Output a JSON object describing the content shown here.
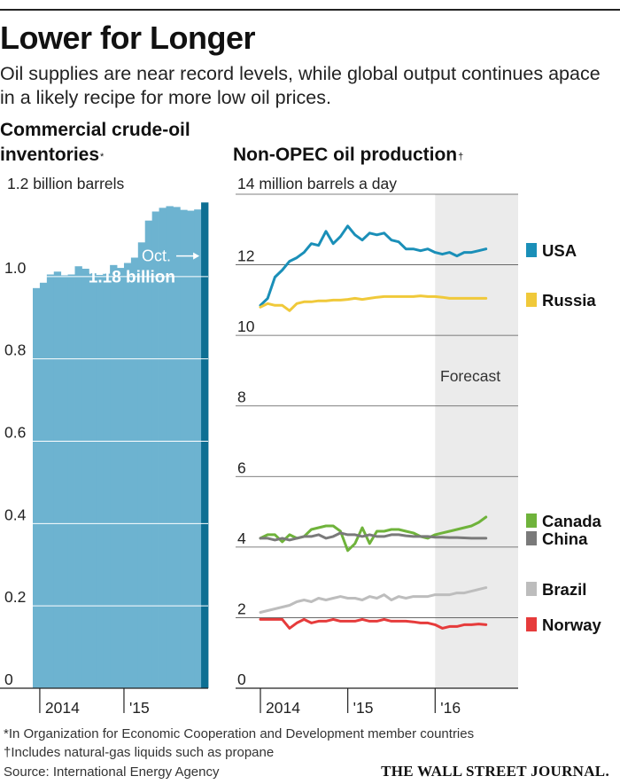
{
  "header": {
    "title": "Lower for Longer",
    "subtitle": "Oil supplies are near record levels, while global output continues apace in a likely recipe for more low oil prices."
  },
  "chart_data": [
    {
      "type": "bar",
      "title": "Commercial crude-oil inventories",
      "title_mark": "*",
      "unit_label": "1.2 billion barrels",
      "ylim": [
        0,
        1.2
      ],
      "yticks": [
        {
          "value": 0,
          "label": "0"
        },
        {
          "value": 0.2,
          "label": "0.2"
        },
        {
          "value": 0.4,
          "label": "0.4"
        },
        {
          "value": 0.6,
          "label": "0.6"
        },
        {
          "value": 0.8,
          "label": "0.8"
        },
        {
          "value": 1.0,
          "label": "1.0"
        }
      ],
      "x_ticks": [
        {
          "index": 1,
          "label": "2014"
        },
        {
          "index": 13,
          "label": "'15"
        }
      ],
      "categories": [
        "2013-10",
        "2013-11",
        "2013-12",
        "2014-01",
        "2014-02",
        "2014-03",
        "2014-04",
        "2014-05",
        "2014-06",
        "2014-07",
        "2014-08",
        "2014-09",
        "2014-10",
        "2014-11",
        "2014-12",
        "2015-01",
        "2015-02",
        "2015-03",
        "2015-04",
        "2015-05",
        "2015-06",
        "2015-07",
        "2015-08",
        "2015-09",
        "2015-10"
      ],
      "values": [
        0.972,
        0.985,
        1.005,
        1.012,
        1.003,
        1.005,
        1.025,
        1.019,
        1.008,
        1.004,
        1.007,
        1.028,
        1.021,
        1.033,
        1.046,
        1.083,
        1.136,
        1.158,
        1.167,
        1.171,
        1.169,
        1.162,
        1.16,
        1.163,
        1.18
      ],
      "highlight_index": 24,
      "annotation": {
        "month": "Oct.",
        "value_label": "1.18 billion"
      },
      "colors": {
        "bar": "#6db3d0",
        "highlight": "#0d6f93"
      }
    },
    {
      "type": "line",
      "title": "Non-OPEC oil production",
      "title_mark": "†",
      "unit_label": "14 million barrels a day",
      "ylim": [
        0,
        14
      ],
      "yticks": [
        {
          "value": 0,
          "label": "0"
        },
        {
          "value": 2,
          "label": "2"
        },
        {
          "value": 4,
          "label": "4"
        },
        {
          "value": 6,
          "label": "6"
        },
        {
          "value": 8,
          "label": "8"
        },
        {
          "value": 10,
          "label": "10"
        },
        {
          "value": 12,
          "label": "12"
        }
      ],
      "x_range": [
        2014.0,
        2016.95
      ],
      "x_ticks": [
        {
          "value": 2014.0,
          "label": "2014"
        },
        {
          "value": 2015.0,
          "label": "'15"
        },
        {
          "value": 2016.0,
          "label": "'16"
        }
      ],
      "forecast": {
        "start": 2016.0,
        "end": 2016.95,
        "label": "Forecast"
      },
      "series": [
        {
          "name": "USA",
          "color": "#1a8fb8",
          "x_start": 2014.0,
          "x_step": 0.0833,
          "values": [
            10.85,
            11.05,
            11.65,
            11.85,
            12.1,
            12.2,
            12.35,
            12.6,
            12.55,
            12.95,
            12.6,
            12.8,
            13.1,
            12.85,
            12.7,
            12.9,
            12.85,
            12.9,
            12.7,
            12.65,
            12.45,
            12.45,
            12.4,
            12.45,
            12.35,
            12.3,
            12.35,
            12.25,
            12.35,
            12.35,
            12.4,
            12.45
          ]
        },
        {
          "name": "Russia",
          "color": "#f0c93a",
          "x_start": 2014.0,
          "x_step": 0.0833,
          "values": [
            10.8,
            10.9,
            10.85,
            10.85,
            10.7,
            10.9,
            10.95,
            10.95,
            10.98,
            10.98,
            11.0,
            11.0,
            11.02,
            11.05,
            11.02,
            11.05,
            11.08,
            11.1,
            11.1,
            11.1,
            11.1,
            11.1,
            11.12,
            11.1,
            11.1,
            11.08,
            11.05,
            11.05,
            11.05,
            11.05,
            11.05,
            11.05
          ]
        },
        {
          "name": "Canada",
          "color": "#6fb33b",
          "x_start": 2014.0,
          "x_step": 0.0833,
          "values": [
            4.25,
            4.35,
            4.35,
            4.15,
            4.35,
            4.25,
            4.3,
            4.5,
            4.55,
            4.6,
            4.6,
            4.45,
            3.9,
            4.1,
            4.55,
            4.1,
            4.45,
            4.45,
            4.5,
            4.5,
            4.45,
            4.4,
            4.3,
            4.25,
            4.35,
            4.4,
            4.45,
            4.5,
            4.55,
            4.6,
            4.7,
            4.85
          ]
        },
        {
          "name": "China",
          "color": "#7a7a7a",
          "x_start": 2014.0,
          "x_step": 0.0833,
          "values": [
            4.25,
            4.25,
            4.2,
            4.25,
            4.2,
            4.25,
            4.3,
            4.3,
            4.35,
            4.25,
            4.3,
            4.4,
            4.35,
            4.35,
            4.3,
            4.35,
            4.3,
            4.3,
            4.35,
            4.35,
            4.32,
            4.3,
            4.3,
            4.3,
            4.28,
            4.28,
            4.27,
            4.27,
            4.26,
            4.25,
            4.25,
            4.25
          ]
        },
        {
          "name": "Brazil",
          "color": "#bdbdbd",
          "x_start": 2014.0,
          "x_step": 0.0833,
          "values": [
            2.15,
            2.2,
            2.25,
            2.3,
            2.35,
            2.45,
            2.5,
            2.45,
            2.55,
            2.5,
            2.55,
            2.6,
            2.55,
            2.55,
            2.5,
            2.6,
            2.55,
            2.65,
            2.5,
            2.6,
            2.55,
            2.6,
            2.6,
            2.6,
            2.65,
            2.65,
            2.65,
            2.7,
            2.7,
            2.75,
            2.8,
            2.85
          ]
        },
        {
          "name": "Norway",
          "color": "#e63b3b",
          "x_start": 2014.0,
          "x_step": 0.0833,
          "values": [
            1.95,
            1.95,
            1.95,
            1.95,
            1.7,
            1.85,
            1.95,
            1.85,
            1.9,
            1.9,
            1.95,
            1.9,
            1.9,
            1.9,
            1.95,
            1.9,
            1.9,
            1.95,
            1.9,
            1.9,
            1.9,
            1.88,
            1.85,
            1.85,
            1.8,
            1.7,
            1.75,
            1.75,
            1.8,
            1.8,
            1.82,
            1.8
          ]
        }
      ]
    }
  ],
  "footnotes": [
    "*In Organization for Economic Cooperation and Development member countries",
    "†Includes natural-gas liquids such as propane",
    "Source: International Energy Agency"
  ],
  "publisher": "THE WALL STREET JOURNAL."
}
